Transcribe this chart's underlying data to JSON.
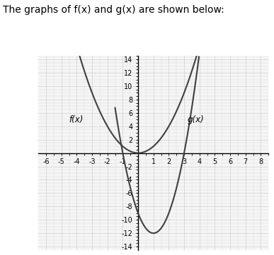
{
  "title": "The graphs of f(x) and g(x) are shown below:",
  "fx_label": "f(x)",
  "gx_label": "g(x)",
  "xlim": [
    -6.5,
    8.5
  ],
  "ylim": [
    -14.5,
    14.5
  ],
  "xticks": [
    -6,
    -5,
    -4,
    -3,
    -2,
    -1,
    0,
    1,
    2,
    3,
    4,
    5,
    6,
    7,
    8
  ],
  "yticks": [
    -14,
    -12,
    -10,
    -8,
    -6,
    -4,
    -2,
    0,
    2,
    4,
    6,
    8,
    10,
    12,
    14
  ],
  "grid_color": "#c0c0c0",
  "line_color": "#404040",
  "bg_color": "#e8e8e8",
  "plot_bg": "#f5f5f5",
  "title_fontsize": 10,
  "label_fontsize": 8.5,
  "tick_fontsize": 7,
  "f_vertex_x": 0,
  "f_vertex_y": 0,
  "f_a": 1,
  "g_vertex_x": 1,
  "g_vertex_y": -12,
  "g_a": 3
}
